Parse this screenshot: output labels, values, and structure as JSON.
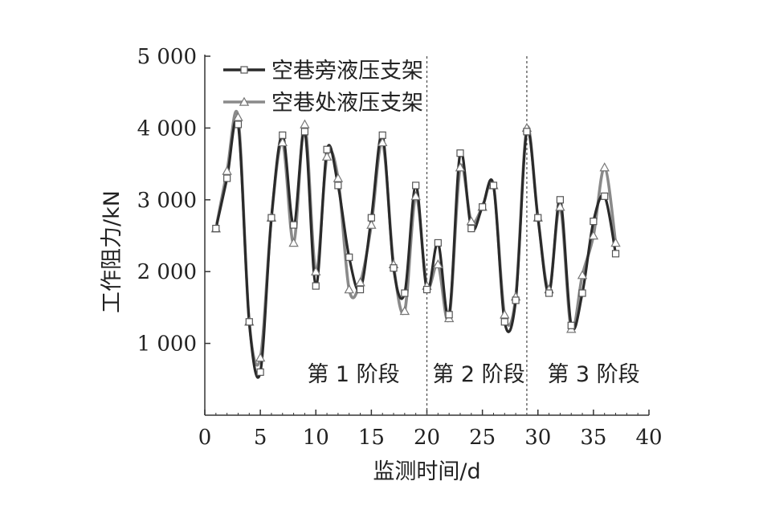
{
  "chart_data": {
    "type": "line",
    "xlabel": "监测时间/d",
    "ylabel": "工作阻力/kN",
    "xlim": [
      0,
      40
    ],
    "ylim": [
      0,
      5000
    ],
    "x_ticks": [
      0,
      5,
      10,
      15,
      20,
      25,
      30,
      35,
      40
    ],
    "x_tick_labels": [
      "0",
      "5",
      "10",
      "15",
      "20",
      "25",
      "30",
      "35",
      "40"
    ],
    "y_ticks": [
      1000,
      2000,
      3000,
      4000,
      5000
    ],
    "y_tick_labels": [
      "1 000",
      "2 000",
      "3 000",
      "4 000",
      "5 000"
    ],
    "grid": false,
    "legend_position": "top-left",
    "x": [
      1,
      2,
      3,
      4,
      5,
      6,
      7,
      8,
      9,
      10,
      11,
      12,
      13,
      14,
      15,
      16,
      17,
      18,
      19,
      20,
      21,
      22,
      23,
      24,
      25,
      26,
      27,
      28,
      29,
      30,
      31,
      32,
      33,
      34,
      35,
      36,
      37
    ],
    "series": [
      {
        "name": "空巷旁液压支架",
        "marker": "square",
        "color": "#2a2a2a",
        "values": [
          2600,
          3300,
          4050,
          1300,
          600,
          2750,
          3900,
          2650,
          3950,
          1800,
          3700,
          3200,
          2200,
          1750,
          2750,
          3900,
          2050,
          1700,
          3200,
          1750,
          2400,
          1400,
          3650,
          2600,
          2900,
          3200,
          1300,
          1600,
          3950,
          2750,
          1700,
          3000,
          1250,
          1700,
          2700,
          3050,
          2250
        ]
      },
      {
        "name": "空巷处液压支架",
        "marker": "triangle",
        "color": "#8a8a8a",
        "values": [
          2600,
          3400,
          4150,
          1300,
          800,
          2750,
          3800,
          2400,
          4050,
          2000,
          3600,
          3300,
          1750,
          1850,
          2650,
          3800,
          2100,
          1450,
          3050,
          1800,
          2100,
          1350,
          3450,
          2700,
          2900,
          3200,
          1400,
          1650,
          4000,
          2750,
          1750,
          2900,
          1200,
          1950,
          2500,
          3450,
          2400
        ]
      }
    ],
    "reference_lines_x": [
      20,
      29
    ],
    "annotations": [
      "第 1 阶段",
      "第 2 阶段",
      "第 3 阶段"
    ]
  }
}
